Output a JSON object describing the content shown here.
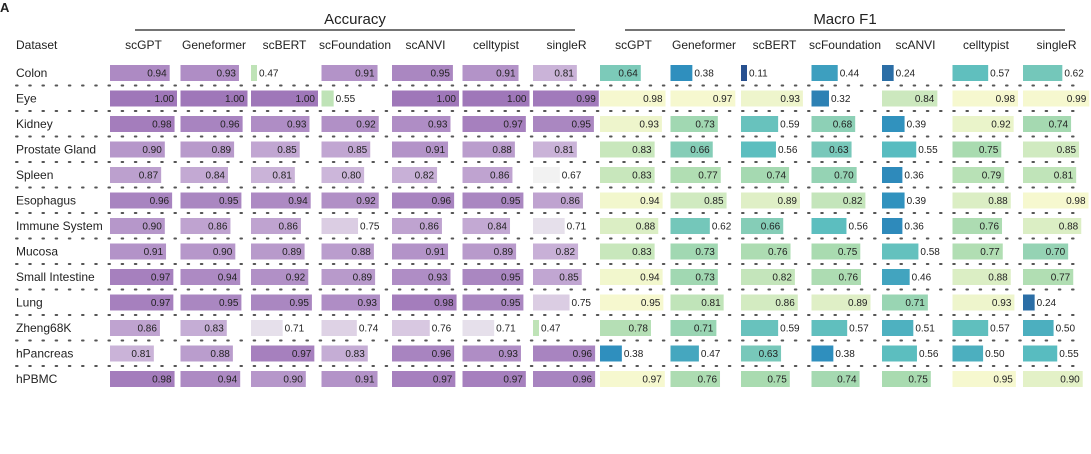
{
  "panel_label": "A",
  "colors": {
    "accuracy_low": "#f2f2f2",
    "accuracy_mid": "#ccb6da",
    "accuracy_high": "#9f77b9",
    "accuracy_green": "#bfe3b7",
    "f1_low": "#28508f",
    "f1_lowmid": "#2f8fbe",
    "f1_mid": "#58bcc0",
    "f1_midhigh": "#a9dbb0",
    "f1_high": "#f6f8cf",
    "text": "#222222",
    "dot": "#555555"
  },
  "chart_data": {
    "type": "heatmap",
    "row_header": "Dataset",
    "rows": [
      "Colon",
      "Eye",
      "Kidney",
      "Prostate Gland",
      "Spleen",
      "Esophagus",
      "Immune System",
      "Mucosa",
      "Small Intestine",
      "Lung",
      "Zheng68K",
      "hPancreas",
      "hPBMC"
    ],
    "groups": [
      {
        "name": "Accuracy",
        "columns": [
          "scGPT",
          "Geneformer",
          "scBERT",
          "scFoundation",
          "scANVI",
          "celltypist",
          "singleR"
        ],
        "values": [
          [
            "0.94",
            "0.93",
            "0.47",
            "0.91",
            "0.95",
            "0.91",
            "0.81"
          ],
          [
            "1.00",
            "1.00",
            "1.00",
            "0.55",
            "1.00",
            "1.00",
            "0.99"
          ],
          [
            "0.98",
            "0.96",
            "0.93",
            "0.92",
            "0.93",
            "0.97",
            "0.95"
          ],
          [
            "0.90",
            "0.89",
            "0.85",
            "0.85",
            "0.91",
            "0.88",
            "0.81"
          ],
          [
            "0.87",
            "0.84",
            "0.81",
            "0.80",
            "0.82",
            "0.86",
            "0.67"
          ],
          [
            "0.96",
            "0.95",
            "0.94",
            "0.92",
            "0.96",
            "0.95",
            "0.86"
          ],
          [
            "0.90",
            "0.86",
            "0.86",
            "0.75",
            "0.86",
            "0.84",
            "0.71"
          ],
          [
            "0.91",
            "0.90",
            "0.89",
            "0.88",
            "0.91",
            "0.89",
            "0.82"
          ],
          [
            "0.97",
            "0.94",
            "0.92",
            "0.89",
            "0.93",
            "0.95",
            "0.85"
          ],
          [
            "0.97",
            "0.95",
            "0.95",
            "0.93",
            "0.98",
            "0.95",
            "0.75"
          ],
          [
            "0.86",
            "0.83",
            "0.71",
            "0.74",
            "0.76",
            "0.71",
            "0.47"
          ],
          [
            "0.81",
            "0.88",
            "0.97",
            "0.83",
            "0.96",
            "0.93",
            "0.96"
          ],
          [
            "0.98",
            "0.94",
            "0.90",
            "0.91",
            "0.97",
            "0.97",
            "0.96"
          ]
        ]
      },
      {
        "name": "Macro F1",
        "columns": [
          "scGPT",
          "Geneformer",
          "scBERT",
          "scFoundation",
          "scANVI",
          "celltypist",
          "singleR"
        ],
        "values": [
          [
            "0.64",
            "0.38",
            "0.11",
            "0.44",
            "0.24",
            "0.57",
            "0.62"
          ],
          [
            "0.98",
            "0.97",
            "0.93",
            "0.32",
            "0.84",
            "0.98",
            "0.99"
          ],
          [
            "0.93",
            "0.73",
            "0.59",
            "0.68",
            "0.39",
            "0.92",
            "0.74"
          ],
          [
            "0.83",
            "0.66",
            "0.56",
            "0.63",
            "0.55",
            "0.75",
            "0.85"
          ],
          [
            "0.83",
            "0.77",
            "0.74",
            "0.70",
            "0.36",
            "0.79",
            "0.81"
          ],
          [
            "0.94",
            "0.85",
            "0.89",
            "0.82",
            "0.39",
            "0.88",
            "0.98"
          ],
          [
            "0.88",
            "0.62",
            "0.66",
            "0.56",
            "0.36",
            "0.76",
            "0.88"
          ],
          [
            "0.83",
            "0.73",
            "0.76",
            "0.75",
            "0.58",
            "0.77",
            "0.70"
          ],
          [
            "0.94",
            "0.73",
            "0.82",
            "0.76",
            "0.46",
            "0.88",
            "0.77"
          ],
          [
            "0.95",
            "0.81",
            "0.86",
            "0.89",
            "0.71",
            "0.93",
            "0.24"
          ],
          [
            "0.78",
            "0.71",
            "0.59",
            "0.57",
            "0.51",
            "0.57",
            "0.50"
          ],
          [
            "0.38",
            "0.47",
            "0.63",
            "0.38",
            "0.56",
            "0.50",
            "0.55"
          ],
          [
            "0.97",
            "0.76",
            "0.75",
            "0.74",
            "0.75",
            "0.95",
            "0.90"
          ]
        ]
      }
    ]
  }
}
